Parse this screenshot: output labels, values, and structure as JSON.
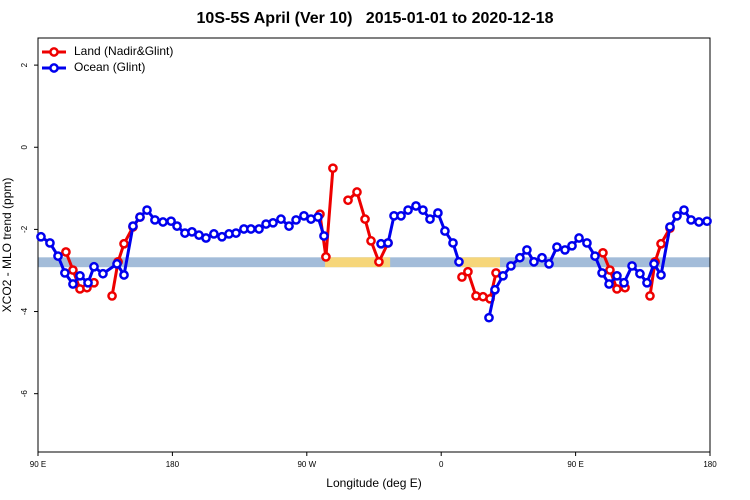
{
  "chart_data": {
    "type": "line",
    "title": "10S-5S April (Ver 10)   2015-01-01 to 2020-12-18",
    "x_label": "Longitude (deg E)",
    "y_label": "XCO2 - MLO trend (ppm)",
    "xlim": [
      90,
      540
    ],
    "ylim": [
      -7.42,
      2.66
    ],
    "xticks": [
      {
        "value": 90,
        "label": "90 E"
      },
      180,
      {
        "value": 270,
        "label": "90 W"
      },
      {
        "value": 360,
        "label": "0"
      },
      {
        "value": 450,
        "label": "90 E"
      },
      {
        "value": 540,
        "label": "180"
      }
    ],
    "yticks": [
      -6,
      -4,
      -2,
      0,
      2
    ],
    "legend": "top-left",
    "band": {
      "y": [
        -2.92,
        -2.68
      ],
      "color": "#a3bcd9",
      "highlight_color": "#f6d67a",
      "highlight_x": [
        [
          282.2,
          325.8
        ],
        [
          372.6,
          399.4
        ]
      ]
    },
    "series": [
      {
        "name": "Land (Nadir&Glint)",
        "color": "#ee0000",
        "x": [
          108.7,
          113.4,
          118.1,
          122.8,
          127.5,
          null,
          139.6,
          143.6,
          147.6,
          153.6,
          158.3,
          null,
          278.8,
          282.8,
          287.5,
          null,
          297.6,
          303.6,
          309.0,
          313.0,
          318.3,
          324.4,
          null,
          373.9,
          377.9,
          383.3,
          388.0,
          392.7,
          396.7,
          null,
          468.3,
          473.0,
          477.7,
          483.1,
          null,
          499.8,
          503.2,
          507.2,
          513.2
        ],
        "values": [
          -2.55,
          -2.99,
          -3.45,
          -3.42,
          -3.3,
          null,
          -3.62,
          -2.79,
          -2.35,
          -1.94,
          -1.7,
          null,
          -1.63,
          -2.67,
          -0.51,
          null,
          -1.29,
          -1.09,
          -1.75,
          -2.28,
          -2.79,
          -2.33,
          null,
          -3.16,
          -3.03,
          -3.62,
          -3.64,
          -3.69,
          -3.06,
          null,
          -2.57,
          -2.99,
          -3.45,
          -3.42,
          null,
          -3.62,
          -2.79,
          -2.35,
          -1.97
        ]
      },
      {
        "name": "Ocean (Glint)",
        "color": "#0000ee",
        "x": [
          92.0,
          98.0,
          103.4,
          108.0,
          113.4,
          118.1,
          123.5,
          127.5,
          133.5,
          142.9,
          147.6,
          153.6,
          158.3,
          163.0,
          168.3,
          173.7,
          179.1,
          183.1,
          188.4,
          193.1,
          197.8,
          202.5,
          207.8,
          213.2,
          217.9,
          222.6,
          227.9,
          232.6,
          238.0,
          242.7,
          247.4,
          252.7,
          258.1,
          262.8,
          268.1,
          272.8,
          277.5,
          281.5,
          null,
          319.7,
          324.4,
          328.4,
          333.1,
          337.8,
          343.1,
          347.8,
          352.5,
          357.8,
          362.5,
          367.9,
          371.9,
          null,
          392.0,
          396.0,
          401.4,
          406.7,
          412.7,
          417.4,
          422.1,
          427.5,
          432.2,
          437.5,
          442.9,
          447.6,
          452.3,
          457.6,
          463.0,
          467.7,
          472.4,
          477.7,
          482.4,
          487.8,
          493.1,
          497.8,
          502.5,
          507.2,
          513.2,
          517.9,
          522.6,
          527.3,
          532.6,
          538.0
        ],
        "values": [
          -2.18,
          -2.33,
          -2.65,
          -3.06,
          -3.33,
          -3.13,
          -3.3,
          -2.91,
          -3.08,
          -2.84,
          -3.11,
          -1.92,
          -1.7,
          -1.53,
          -1.77,
          -1.82,
          -1.8,
          -1.92,
          -2.09,
          -2.06,
          -2.14,
          -2.21,
          -2.11,
          -2.18,
          -2.11,
          -2.09,
          -1.99,
          -1.99,
          -1.99,
          -1.87,
          -1.84,
          -1.75,
          -1.92,
          -1.77,
          -1.67,
          -1.75,
          -1.7,
          -2.16,
          null,
          -2.35,
          -2.33,
          -1.67,
          -1.67,
          -1.53,
          -1.43,
          -1.53,
          -1.75,
          -1.6,
          -2.04,
          -2.33,
          -2.79,
          null,
          -4.15,
          -3.47,
          -3.13,
          -2.89,
          -2.69,
          -2.5,
          -2.79,
          -2.69,
          -2.84,
          -2.43,
          -2.5,
          -2.4,
          -2.21,
          -2.33,
          -2.65,
          -3.06,
          -3.33,
          -3.13,
          -3.3,
          -2.89,
          -3.08,
          -3.3,
          -2.84,
          -3.11,
          -1.94,
          -1.67,
          -1.53,
          -1.77,
          -1.82,
          -1.8
        ]
      }
    ]
  }
}
